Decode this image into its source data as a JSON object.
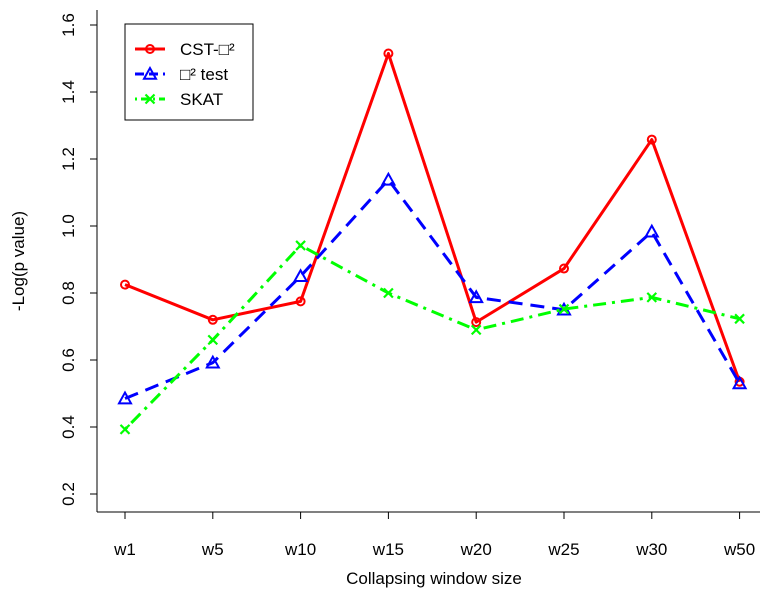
{
  "chart_data": {
    "type": "line",
    "title": "",
    "xlabel": "Collapsing window size",
    "ylabel": "-Log(p value)",
    "categories": [
      "w1",
      "w5",
      "w10",
      "w15",
      "w20",
      "w25",
      "w30",
      "w50"
    ],
    "ylim": [
      0.2,
      1.6
    ],
    "yticks": [
      "0.2",
      "0.4",
      "0.6",
      "0.8",
      "1.0",
      "1.2",
      "1.4",
      "1.6"
    ],
    "grid": false,
    "legend_position": "top-left",
    "series": [
      {
        "name": "CST-□²",
        "color": "#ff0000",
        "line_style": "solid",
        "marker": "circle",
        "values": [
          0.825,
          0.72,
          0.775,
          1.515,
          0.713,
          0.873,
          1.258,
          0.535
        ]
      },
      {
        "name": "□² test",
        "color": "#0000ff",
        "line_style": "dashed",
        "marker": "triangle",
        "values": [
          0.485,
          0.592,
          0.85,
          1.138,
          0.787,
          0.75,
          0.983,
          0.53
        ]
      },
      {
        "name": "SKAT",
        "color": "#00ff00",
        "line_style": "dotdash",
        "marker": "x",
        "values": [
          0.393,
          0.66,
          0.942,
          0.8,
          0.69,
          0.752,
          0.787,
          0.723
        ]
      }
    ]
  }
}
